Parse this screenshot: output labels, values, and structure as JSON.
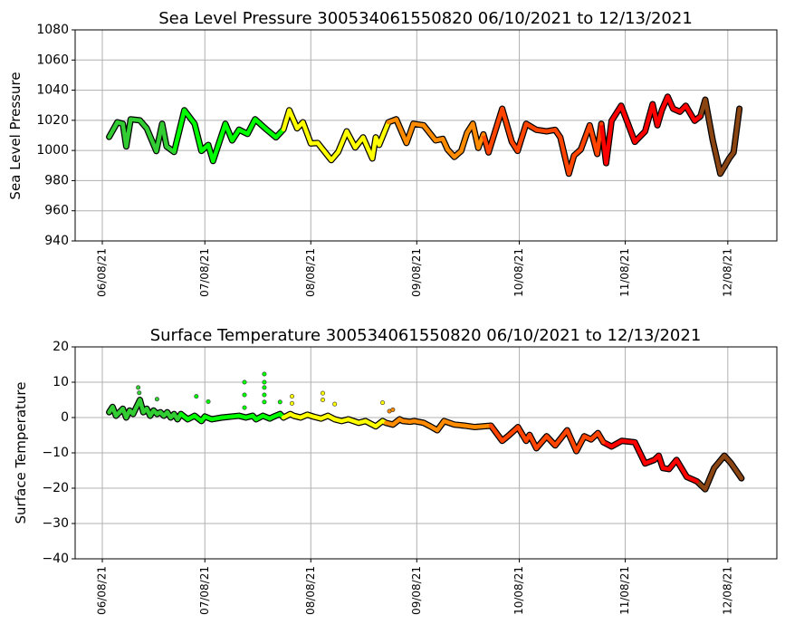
{
  "chart_data": [
    {
      "type": "line",
      "title": "Sea Level Pressure 300534061550820  06/10/2021 to 12/13/2021",
      "xlabel": "",
      "ylabel": "Sea Level Pressure",
      "x_unit": "days since 06/08/21",
      "ylim": [
        940,
        1080
      ],
      "xlim": [
        -8,
        197
      ],
      "yticks": [
        940,
        960,
        980,
        1000,
        1020,
        1040,
        1060,
        1080
      ],
      "xticks": [
        {
          "day": 0,
          "label": "06/08/21"
        },
        {
          "day": 30,
          "label": "07/08/21"
        },
        {
          "day": 61,
          "label": "08/08/21"
        },
        {
          "day": 92,
          "label": "09/08/21"
        },
        {
          "day": 122,
          "label": "10/08/21"
        },
        {
          "day": 153,
          "label": "11/08/21"
        },
        {
          "day": 183,
          "label": "12/08/21"
        }
      ],
      "grid": true,
      "color_segments": [
        {
          "from": 0,
          "to": 22.5,
          "color": "#32cd32"
        },
        {
          "from": 22.5,
          "to": 52.6,
          "color": "#00ff00"
        },
        {
          "from": 52.6,
          "to": 83,
          "color": "#ffff00"
        },
        {
          "from": 83,
          "to": 112,
          "color": "#ff8c00"
        },
        {
          "from": 112,
          "to": 146.5,
          "color": "#ff4500"
        },
        {
          "from": 146.5,
          "to": 175.5,
          "color": "#ff0000"
        },
        {
          "from": 175.5,
          "to": 200,
          "color": "#8b4513"
        }
      ],
      "points": [
        [
          2,
          1009
        ],
        [
          4.4,
          1018.7
        ],
        [
          6,
          1017.7
        ],
        [
          7,
          1002.7
        ],
        [
          8.3,
          1020.7
        ],
        [
          11,
          1020
        ],
        [
          13,
          1014.7
        ],
        [
          15.8,
          999.6
        ],
        [
          17.5,
          1017.7
        ],
        [
          18.8,
          1002.7
        ],
        [
          21,
          999
        ],
        [
          24,
          1026.7
        ],
        [
          27,
          1017.7
        ],
        [
          29,
          999.7
        ],
        [
          31,
          1003.7
        ],
        [
          32.4,
          993
        ],
        [
          34,
          1004
        ],
        [
          36,
          1017.7
        ],
        [
          38,
          1006.7
        ],
        [
          40,
          1013.8
        ],
        [
          42.5,
          1011
        ],
        [
          44.7,
          1020.7
        ],
        [
          48,
          1014
        ],
        [
          50.8,
          1008.7
        ],
        [
          53,
          1014
        ],
        [
          54.7,
          1026.7
        ],
        [
          57,
          1014.7
        ],
        [
          58.7,
          1018.7
        ],
        [
          61,
          1004.7
        ],
        [
          63,
          1005
        ],
        [
          67,
          993.6
        ],
        [
          69,
          999
        ],
        [
          71.5,
          1012.7
        ],
        [
          74,
          1002
        ],
        [
          76.3,
          1008.7
        ],
        [
          79,
          994.7
        ],
        [
          80,
          1008.7
        ],
        [
          81,
          1003.7
        ],
        [
          83.7,
          1018.7
        ],
        [
          86,
          1020.7
        ],
        [
          89,
          1005
        ],
        [
          91,
          1017.7
        ],
        [
          94,
          1016.7
        ],
        [
          97.5,
          1006.7
        ],
        [
          99.6,
          1007.7
        ],
        [
          101,
          1000.7
        ],
        [
          103,
          995.7
        ],
        [
          105,
          999.7
        ],
        [
          106.7,
          1011.7
        ],
        [
          108.4,
          1017.7
        ],
        [
          110,
          1001.7
        ],
        [
          111.5,
          1010.7
        ],
        [
          113,
          998.7
        ],
        [
          117,
          1027.7
        ],
        [
          119.8,
          1005.7
        ],
        [
          121.5,
          999.7
        ],
        [
          124,
          1017.7
        ],
        [
          127,
          1013.7
        ],
        [
          130,
          1012.7
        ],
        [
          132.5,
          1013.7
        ],
        [
          134,
          1008.7
        ],
        [
          136.5,
          984.6
        ],
        [
          138,
          996.6
        ],
        [
          140,
          1000.7
        ],
        [
          142.6,
          1016.7
        ],
        [
          144.8,
          997.7
        ],
        [
          146,
          1017.7
        ],
        [
          147.4,
          991.6
        ],
        [
          149,
          1019.7
        ],
        [
          151.8,
          1029.7
        ],
        [
          155.8,
          1005.7
        ],
        [
          158.8,
          1012.7
        ],
        [
          161,
          1030.7
        ],
        [
          162.4,
          1016.7
        ],
        [
          163.7,
          1026.7
        ],
        [
          165.4,
          1035.7
        ],
        [
          167,
          1027.7
        ],
        [
          169,
          1025.7
        ],
        [
          170.7,
          1029.7
        ],
        [
          173.3,
          1019.7
        ],
        [
          175,
          1022.7
        ],
        [
          176.4,
          1033.7
        ],
        [
          178.6,
          1006.7
        ],
        [
          180.8,
          984.6
        ],
        [
          183.4,
          994.7
        ],
        [
          184.7,
          998.7
        ],
        [
          186.4,
          1027.7
        ]
      ],
      "outliers": []
    },
    {
      "type": "line",
      "title": "Surface Temperature 300534061550820  06/10/2021 to 12/13/2021",
      "xlabel": "",
      "ylabel": "Surface Temperature",
      "x_unit": "days since 06/08/21",
      "ylim": [
        -40,
        20
      ],
      "xlim": [
        -8,
        197
      ],
      "yticks": [
        -40,
        -30,
        -20,
        -10,
        0,
        10,
        20
      ],
      "ytick_labels": [
        "−40",
        "−30",
        "−20",
        "−10",
        "0",
        "10",
        "20"
      ],
      "xticks": [
        {
          "day": 0,
          "label": "06/08/21"
        },
        {
          "day": 30,
          "label": "07/08/21"
        },
        {
          "day": 61,
          "label": "08/08/21"
        },
        {
          "day": 92,
          "label": "09/08/21"
        },
        {
          "day": 122,
          "label": "10/08/21"
        },
        {
          "day": 153,
          "label": "11/08/21"
        },
        {
          "day": 183,
          "label": "12/08/21"
        }
      ],
      "grid": true,
      "color_segments": [
        {
          "from": 0,
          "to": 23,
          "color": "#32cd32"
        },
        {
          "from": 23,
          "to": 52.6,
          "color": "#00ff00"
        },
        {
          "from": 52.6,
          "to": 83,
          "color": "#ffff00"
        },
        {
          "from": 83,
          "to": 113.7,
          "color": "#ff8c00"
        },
        {
          "from": 113.7,
          "to": 147,
          "color": "#ff4500"
        },
        {
          "from": 147,
          "to": 174.5,
          "color": "#ff0000"
        },
        {
          "from": 174.5,
          "to": 200,
          "color": "#8b4513"
        }
      ],
      "points": [
        [
          2,
          1.5
        ],
        [
          3,
          3
        ],
        [
          4,
          0.5
        ],
        [
          5,
          1.5
        ],
        [
          6,
          2.5
        ],
        [
          7,
          0
        ],
        [
          8,
          2
        ],
        [
          9,
          1
        ],
        [
          10,
          3
        ],
        [
          11,
          5
        ],
        [
          12,
          1.5
        ],
        [
          13,
          2.5
        ],
        [
          14,
          0.5
        ],
        [
          15,
          2
        ],
        [
          16,
          1
        ],
        [
          17,
          1.5
        ],
        [
          18,
          0.5
        ],
        [
          19,
          1.5
        ],
        [
          20,
          0
        ],
        [
          21,
          1
        ],
        [
          22,
          -0.5
        ],
        [
          23,
          1
        ],
        [
          25,
          -0.5
        ],
        [
          27,
          0.5
        ],
        [
          29,
          -1
        ],
        [
          30,
          0.3
        ],
        [
          32,
          -0.5
        ],
        [
          35,
          0
        ],
        [
          38,
          0.3
        ],
        [
          40,
          0.5
        ],
        [
          42,
          0
        ],
        [
          44,
          0.5
        ],
        [
          45,
          -0.5
        ],
        [
          47,
          0.5
        ],
        [
          49,
          -0.3
        ],
        [
          50,
          0.2
        ],
        [
          52,
          1
        ],
        [
          53,
          0
        ],
        [
          55,
          1
        ],
        [
          56,
          0.5
        ],
        [
          58,
          0
        ],
        [
          60,
          0.8
        ],
        [
          62,
          0.2
        ],
        [
          64,
          -0.3
        ],
        [
          66,
          0.5
        ],
        [
          68,
          -0.5
        ],
        [
          70,
          -1
        ],
        [
          72,
          -0.5
        ],
        [
          75,
          -1.5
        ],
        [
          77,
          -1
        ],
        [
          80,
          -2.5
        ],
        [
          82,
          -1
        ],
        [
          83,
          -1.5
        ],
        [
          85,
          -2
        ],
        [
          87,
          -0.5
        ],
        [
          88,
          -1
        ],
        [
          90,
          -1.2
        ],
        [
          91.3,
          -1
        ],
        [
          94,
          -1.5
        ],
        [
          96,
          -2.5
        ],
        [
          98,
          -3.6
        ],
        [
          100,
          -1
        ],
        [
          103,
          -2
        ],
        [
          106,
          -2.3
        ],
        [
          109,
          -2.7
        ],
        [
          113.7,
          -2.3
        ],
        [
          117,
          -6.6
        ],
        [
          119,
          -5
        ],
        [
          121.6,
          -2.7
        ],
        [
          124,
          -6.6
        ],
        [
          125,
          -4.9
        ],
        [
          127,
          -8.7
        ],
        [
          130,
          -5.3
        ],
        [
          132.5,
          -7.9
        ],
        [
          136,
          -3.6
        ],
        [
          138.7,
          -9.5
        ],
        [
          141,
          -5.3
        ],
        [
          143,
          -6.2
        ],
        [
          145,
          -4.4
        ],
        [
          146.6,
          -7
        ],
        [
          149,
          -8.2
        ],
        [
          152,
          -6.6
        ],
        [
          155.8,
          -7
        ],
        [
          158.8,
          -13
        ],
        [
          161.5,
          -12
        ],
        [
          162.8,
          -10.8
        ],
        [
          164,
          -14.3
        ],
        [
          165.8,
          -14.6
        ],
        [
          168,
          -12
        ],
        [
          171,
          -16.8
        ],
        [
          174,
          -18.1
        ],
        [
          176.4,
          -20.3
        ],
        [
          179,
          -14.3
        ],
        [
          182,
          -10.8
        ],
        [
          184,
          -13
        ],
        [
          187,
          -17.2
        ]
      ],
      "outliers": [
        [
          10.5,
          8.5
        ],
        [
          10.8,
          7
        ],
        [
          16,
          5.2
        ],
        [
          27.5,
          6
        ],
        [
          31,
          4.5
        ],
        [
          41.6,
          10
        ],
        [
          41.6,
          6.4
        ],
        [
          41.6,
          2.8
        ],
        [
          47.4,
          12.3
        ],
        [
          47.4,
          10
        ],
        [
          47.4,
          8.5
        ],
        [
          47.4,
          6.4
        ],
        [
          47.4,
          4.4
        ],
        [
          52,
          4.4
        ],
        [
          55.5,
          6
        ],
        [
          55.5,
          4
        ],
        [
          64.5,
          6.9
        ],
        [
          64.5,
          5
        ],
        [
          68,
          3.8
        ],
        [
          82,
          4.2
        ],
        [
          84,
          1.8
        ],
        [
          85,
          2.2
        ]
      ]
    }
  ]
}
